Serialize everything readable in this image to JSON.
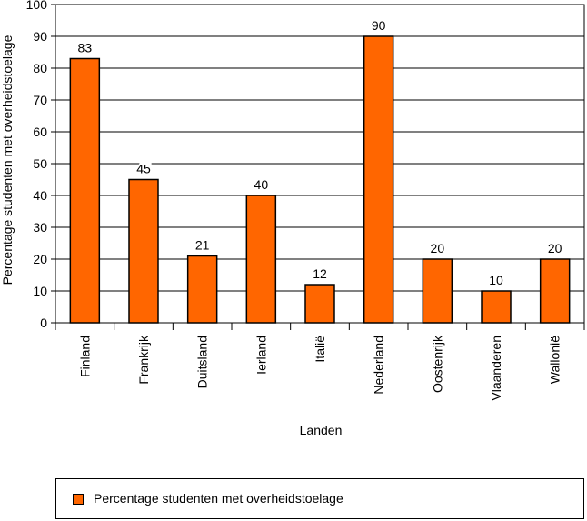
{
  "chart_data": {
    "type": "bar",
    "categories": [
      "Finland",
      "Frankrijk",
      "Duitsland",
      "Ierland",
      "Italië",
      "Nederland",
      "Oostenrijk",
      "Vlaanderen",
      "Wallonië"
    ],
    "series": [
      {
        "name": "Percentage studenten met overheidstoelage",
        "values": [
          83,
          45,
          21,
          40,
          12,
          90,
          20,
          10,
          20
        ]
      }
    ],
    "data_labels": [
      "83",
      "45",
      "21",
      "40",
      "12",
      "90",
      "20",
      "10",
      "20"
    ],
    "xlabel": "Landen",
    "ylabel": "Percentage studenten met overheidstoelage",
    "ylim": [
      0,
      100
    ],
    "yticks": [
      0,
      10,
      20,
      30,
      40,
      50,
      60,
      70,
      80,
      90,
      100
    ],
    "grid": true,
    "legend_position": "bottom",
    "colors": {
      "bar": "#ff6600",
      "outline": "#000000",
      "grid": "#000000"
    }
  }
}
